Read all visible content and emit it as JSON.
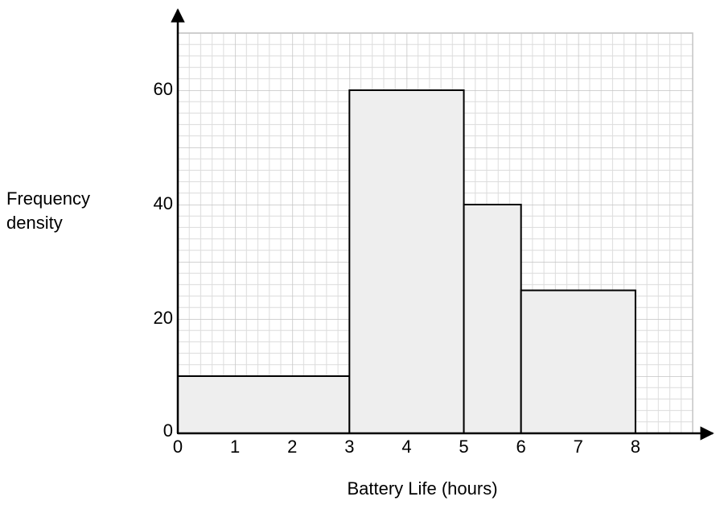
{
  "chart_data": {
    "type": "histogram",
    "x_label": "Battery Life (hours)",
    "y_label": "Frequency density",
    "bins": [
      0,
      3,
      5,
      6,
      8
    ],
    "values": [
      10,
      60,
      40,
      25
    ],
    "color": "#eeeeee",
    "edge_color": "#000000",
    "xlim": [
      0,
      9
    ],
    "xticks": [
      0,
      1,
      2,
      3,
      4,
      5,
      6,
      7,
      8
    ],
    "ylim": [
      0,
      70
    ],
    "yticks": [
      0,
      20,
      40,
      60
    ],
    "grid": true
  }
}
